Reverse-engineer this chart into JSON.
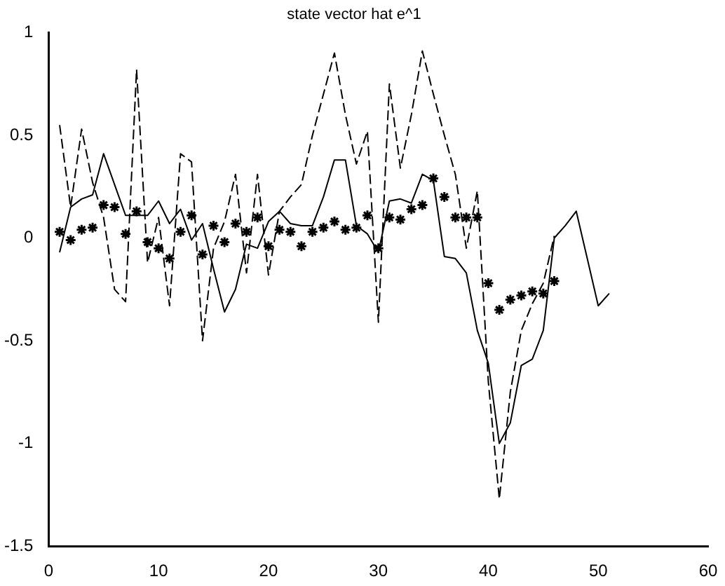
{
  "chart_data": {
    "type": "line",
    "title": "state vector hat e^1",
    "xlim": [
      0,
      60
    ],
    "xticks": [
      0,
      10,
      20,
      30,
      40,
      50,
      60
    ],
    "ylim": [
      -1.5,
      1
    ],
    "yticks": [
      -1.5,
      -1,
      -0.5,
      0,
      0.5,
      1
    ],
    "grid": false,
    "legend": false,
    "x": [
      1,
      2,
      3,
      4,
      5,
      6,
      7,
      8,
      9,
      10,
      11,
      12,
      13,
      14,
      15,
      16,
      17,
      18,
      19,
      20,
      21,
      22,
      23,
      24,
      25,
      26,
      27,
      28,
      29,
      30,
      31,
      32,
      33,
      34,
      35,
      36,
      37,
      38,
      39,
      40,
      41,
      42,
      43,
      44,
      45,
      46,
      47,
      48,
      49,
      50,
      51
    ],
    "series": [
      {
        "color": "#000000",
        "line_style": "solid",
        "marker": "none",
        "values": [
          -0.07,
          0.15,
          0.19,
          0.21,
          0.41,
          0.26,
          0.11,
          0.11,
          0.11,
          0.18,
          0.07,
          0.14,
          -0.01,
          0.07,
          -0.15,
          -0.36,
          -0.25,
          -0.03,
          -0.05,
          0.08,
          0.13,
          0.07,
          0.06,
          0.06,
          0.2,
          0.38,
          0.38,
          0.06,
          0.02,
          -0.07,
          0.18,
          0.19,
          0.17,
          0.31,
          0.28,
          -0.09,
          -0.1,
          -0.17,
          -0.45,
          -0.61,
          -1.0,
          -0.9,
          -0.62,
          -0.59,
          -0.45,
          0.0,
          0.06,
          0.13,
          -0.1,
          -0.33,
          -0.27
        ]
      },
      {
        "color": "#000000",
        "line_style": "dashed",
        "marker": "none",
        "values": [
          0.55,
          0.15,
          0.53,
          0.27,
          0.1,
          -0.25,
          -0.31,
          0.82,
          -0.12,
          0.1,
          -0.33,
          0.41,
          0.37,
          -0.5,
          -0.05,
          0.08,
          0.31,
          -0.17,
          0.31,
          -0.18,
          0.13,
          0.2,
          0.26,
          0.5,
          0.7,
          0.9,
          0.6,
          0.36,
          0.52,
          -0.41,
          0.75,
          0.34,
          0.6,
          0.91,
          0.7,
          0.5,
          0.31,
          -0.05,
          0.23,
          -0.7,
          -1.27,
          -0.75,
          -0.45,
          -0.32,
          -0.22,
          0.01,
          null,
          null,
          null,
          null,
          null
        ]
      },
      {
        "type": "scatter",
        "color": "#000000",
        "marker": "cross",
        "values": [
          0.03,
          -0.01,
          0.04,
          0.05,
          0.16,
          0.15,
          0.02,
          0.13,
          -0.02,
          -0.05,
          -0.1,
          0.03,
          0.11,
          -0.08,
          0.06,
          -0.02,
          0.07,
          0.03,
          0.1,
          -0.04,
          0.04,
          0.03,
          -0.04,
          0.03,
          0.05,
          0.08,
          0.04,
          0.05,
          0.11,
          -0.05,
          0.1,
          0.09,
          0.14,
          0.16,
          0.29,
          0.2,
          0.1,
          0.1,
          0.1,
          -0.22,
          -0.35,
          -0.3,
          -0.28,
          -0.26,
          -0.27,
          -0.21,
          null,
          null,
          null,
          null,
          null
        ]
      }
    ]
  }
}
